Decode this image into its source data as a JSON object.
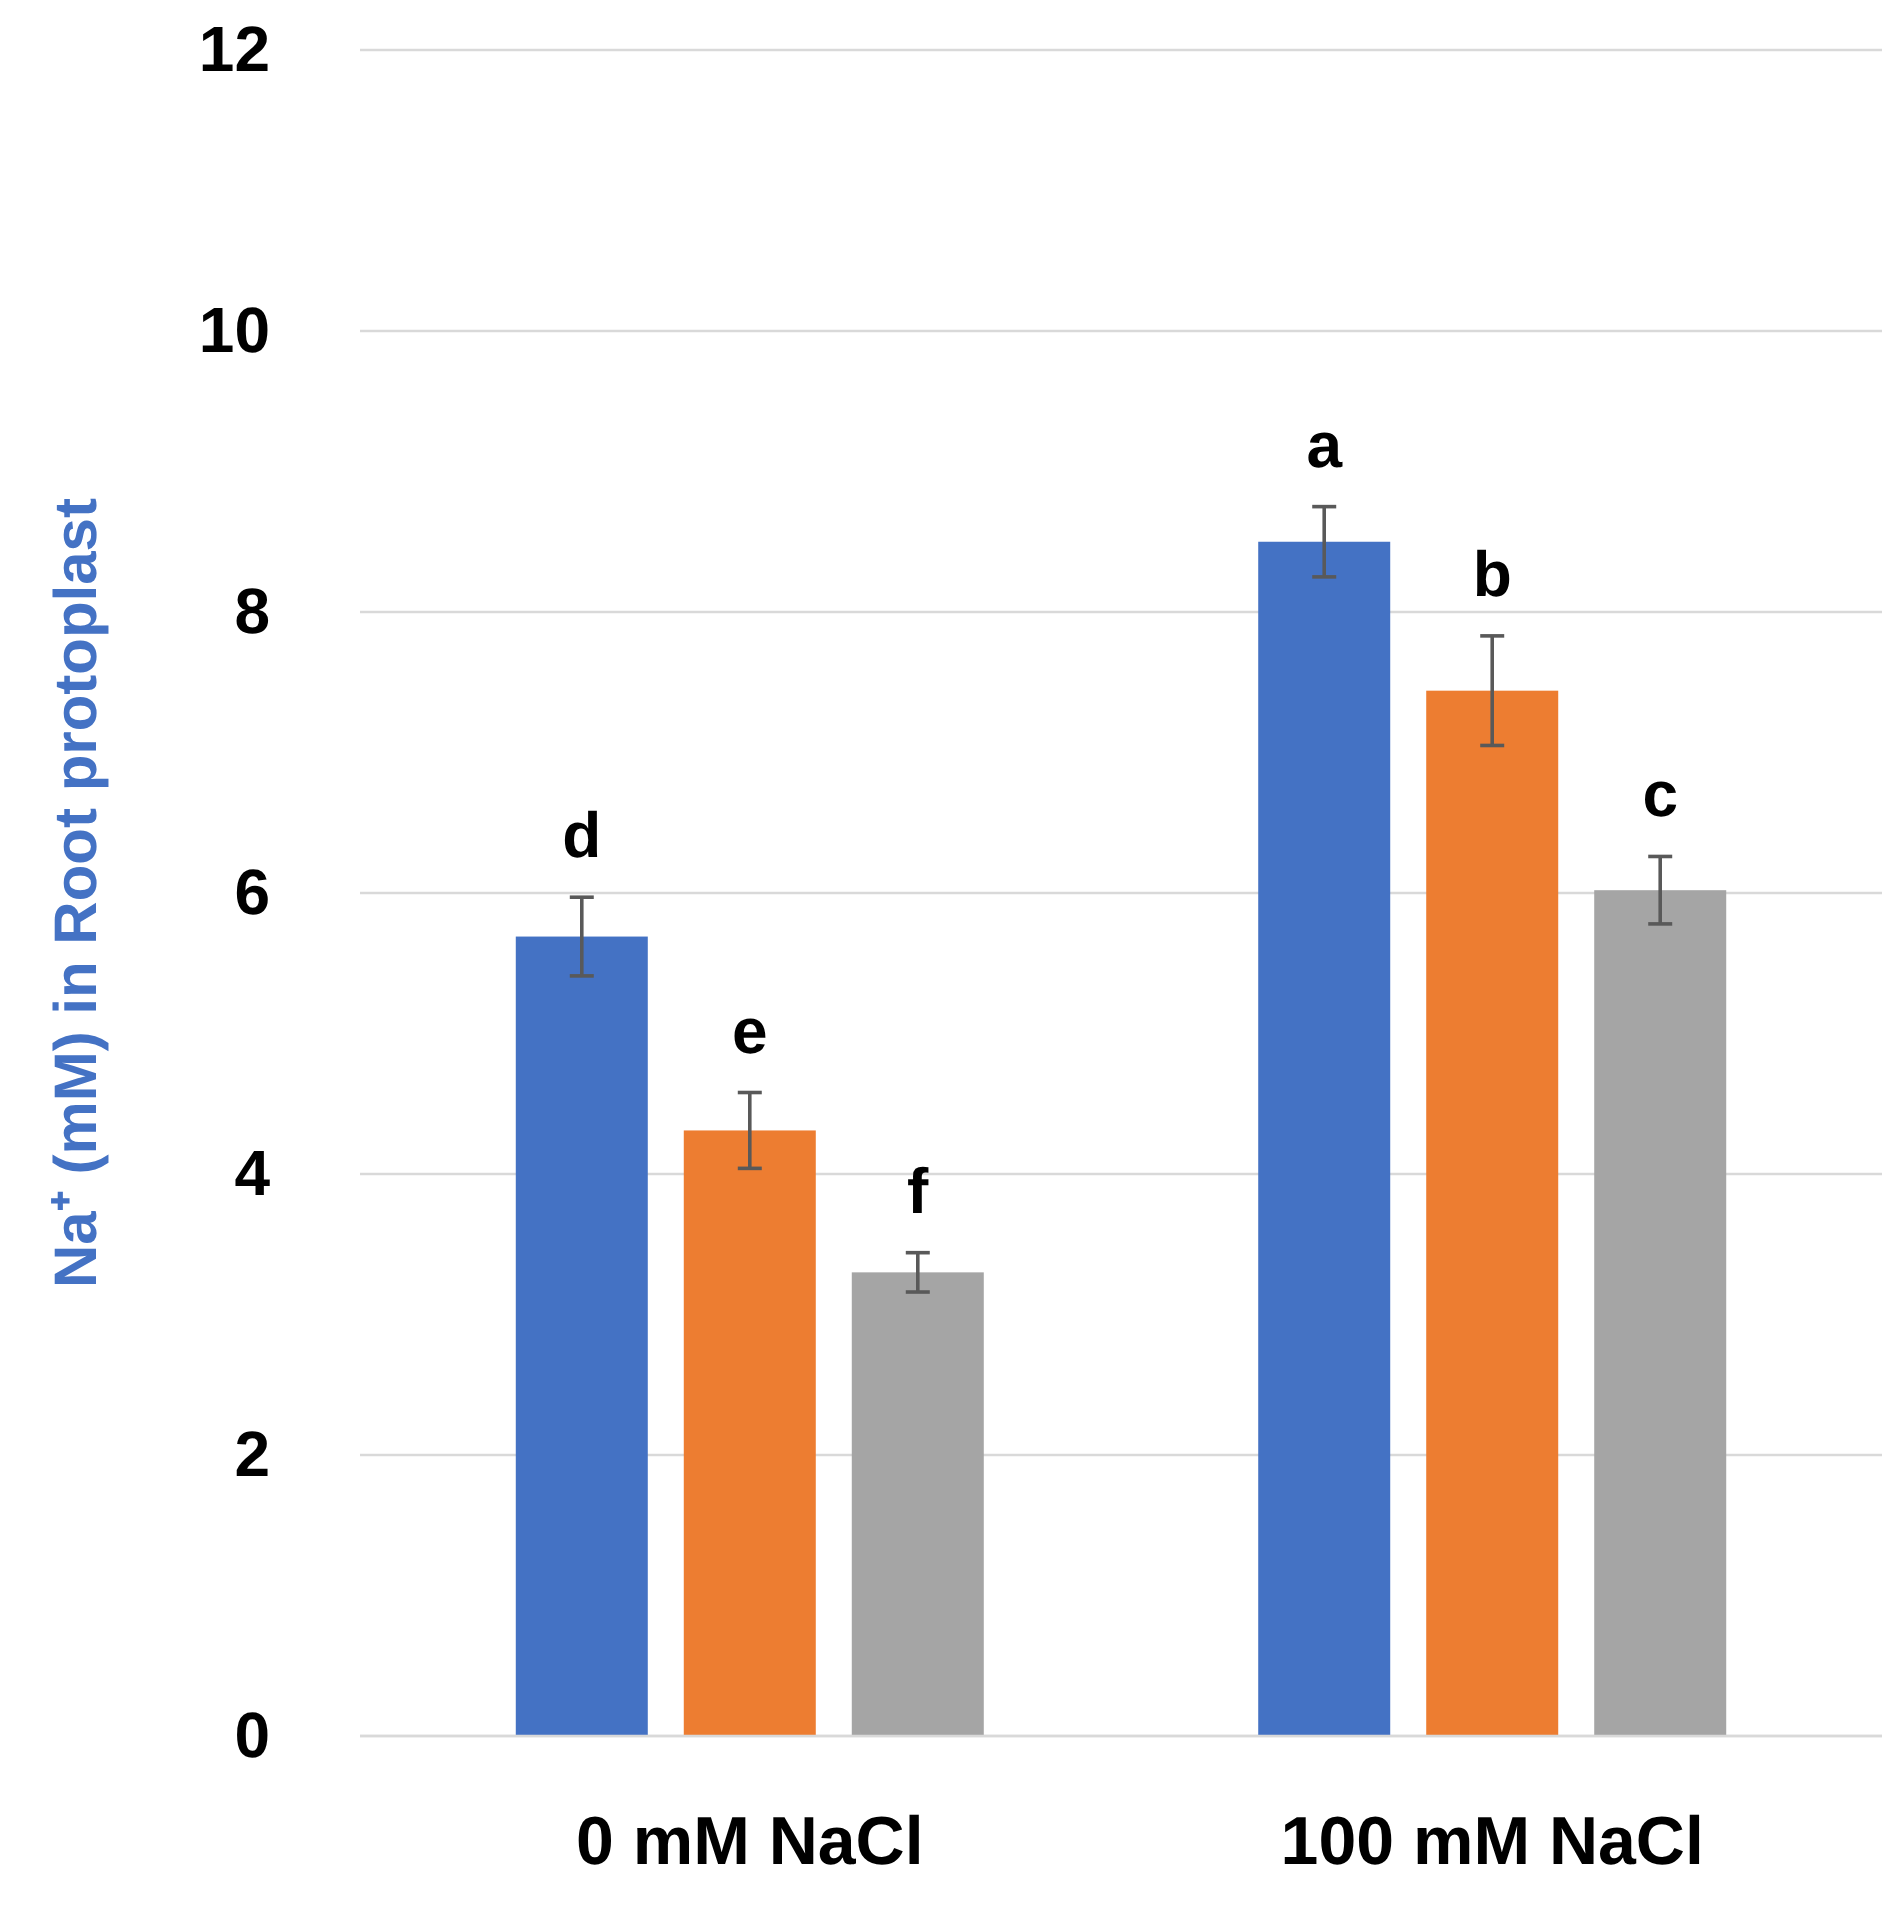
{
  "chart_data": {
    "type": "bar",
    "ylabel": "Na⁺ (mM) in Root protoplast",
    "categories": [
      "0 mM NaCl",
      "100 mM NaCl"
    ],
    "series": [
      {
        "color": "#4472c4",
        "values": [
          5.69,
          8.5
        ],
        "errors": [
          0.28,
          0.25
        ]
      },
      {
        "color": "#ed7d31",
        "values": [
          4.31,
          7.44
        ],
        "errors": [
          0.27,
          0.39
        ]
      },
      {
        "color": "#a5a5a5",
        "values": [
          3.3,
          6.02
        ],
        "errors": [
          0.14,
          0.24
        ]
      }
    ],
    "ylim": [
      0,
      12
    ],
    "yticks": [
      0,
      2,
      4,
      6,
      8,
      10,
      12
    ],
    "grid": "y",
    "annotations": [
      "d",
      "e",
      "f",
      "a",
      "b",
      "c"
    ]
  }
}
